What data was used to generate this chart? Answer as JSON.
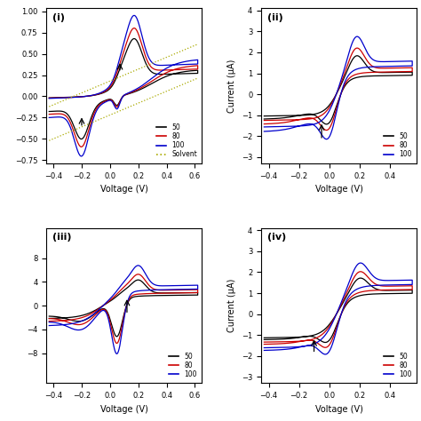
{
  "panels": [
    "(i)",
    "(ii)",
    "(iii)",
    "(iv)"
  ],
  "xlabel": "Voltage (V)",
  "ylabel": "Current (μA)",
  "colors": {
    "50": "#000000",
    "80": "#cc0000",
    "100": "#0000cc",
    "solvent": "#aaaa00"
  },
  "panel_i": {
    "xlim": [
      -0.45,
      0.65
    ],
    "xticks": [
      -0.4,
      -0.2,
      0.0,
      0.2,
      0.4,
      0.6
    ],
    "has_solvent": true,
    "has_ylabel": false
  },
  "panel_ii": {
    "xlim": [
      -0.45,
      0.58
    ],
    "ylim": [
      -3.3,
      4.1
    ],
    "yticks": [
      -3,
      -2,
      -1,
      0,
      1,
      2,
      3,
      4
    ],
    "xticks": [
      -0.4,
      -0.2,
      0.0,
      0.2,
      0.4
    ],
    "has_ylabel": true
  },
  "panel_iii": {
    "xlim": [
      -0.45,
      0.65
    ],
    "ylim": [
      -13,
      13
    ],
    "yticks": [
      -8,
      -4,
      0,
      4,
      8
    ],
    "xticks": [
      -0.4,
      -0.2,
      0.0,
      0.2,
      0.4,
      0.6
    ],
    "has_ylabel": false
  },
  "panel_iv": {
    "xlim": [
      -0.45,
      0.58
    ],
    "ylim": [
      -3.3,
      4.1
    ],
    "yticks": [
      -3,
      -2,
      -1,
      0,
      1,
      2,
      3,
      4
    ],
    "xticks": [
      -0.4,
      -0.2,
      0.0,
      0.2,
      0.4
    ],
    "has_ylabel": true
  }
}
